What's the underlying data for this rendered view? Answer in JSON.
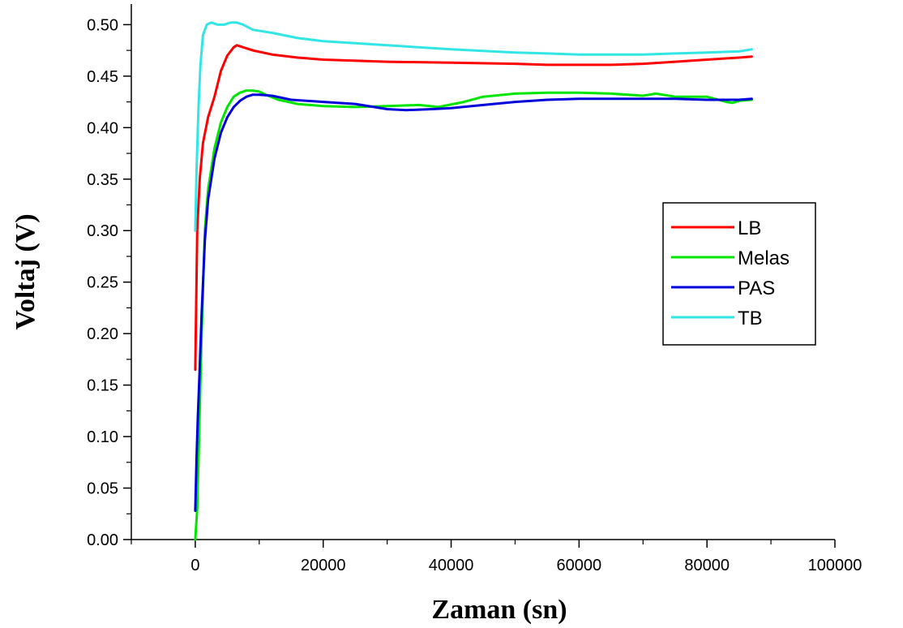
{
  "chart_data": {
    "type": "line",
    "title": "",
    "xlabel": "Zaman (sn)",
    "ylabel": "Voltaj (V)",
    "xlim": [
      -10000,
      100000
    ],
    "ylim": [
      0.0,
      0.52
    ],
    "x_ticks": [
      0,
      20000,
      40000,
      60000,
      80000,
      100000
    ],
    "x_tick_labels": [
      "0",
      "20000",
      "40000",
      "60000",
      "80000",
      "100000"
    ],
    "y_ticks": [
      0.0,
      0.05,
      0.1,
      0.15,
      0.2,
      0.25,
      0.3,
      0.35,
      0.4,
      0.45,
      0.5
    ],
    "y_tick_labels": [
      "0.00",
      "0.05",
      "0.10",
      "0.15",
      "0.20",
      "0.25",
      "0.30",
      "0.35",
      "0.40",
      "0.45",
      "0.50"
    ],
    "grid": false,
    "legend_position": "right",
    "series": [
      {
        "name": "LB",
        "color": "#ff0000",
        "x": [
          0,
          300,
          700,
          1200,
          2000,
          3000,
          4000,
          5000,
          6000,
          6500,
          7500,
          9000,
          12000,
          16000,
          20000,
          30000,
          40000,
          50000,
          55000,
          60000,
          65000,
          70000,
          75000,
          80000,
          85000,
          87000
        ],
        "y": [
          0.165,
          0.3,
          0.35,
          0.385,
          0.41,
          0.43,
          0.455,
          0.47,
          0.478,
          0.48,
          0.478,
          0.475,
          0.471,
          0.468,
          0.466,
          0.464,
          0.463,
          0.462,
          0.461,
          0.461,
          0.461,
          0.462,
          0.464,
          0.466,
          0.468,
          0.469
        ]
      },
      {
        "name": "Melas",
        "color": "#00e600",
        "x": [
          0,
          300,
          600,
          1000,
          1500,
          2000,
          3000,
          4000,
          5000,
          6000,
          7000,
          8000,
          9000,
          10000,
          11000,
          13000,
          16000,
          20000,
          25000,
          30000,
          35000,
          38000,
          42000,
          45000,
          50000,
          55000,
          60000,
          65000,
          70000,
          72000,
          75000,
          80000,
          83000,
          84000,
          85000,
          87000
        ],
        "y": [
          0.0,
          0.03,
          0.1,
          0.2,
          0.3,
          0.34,
          0.38,
          0.405,
          0.42,
          0.43,
          0.434,
          0.436,
          0.436,
          0.435,
          0.432,
          0.427,
          0.423,
          0.421,
          0.42,
          0.421,
          0.422,
          0.42,
          0.425,
          0.43,
          0.433,
          0.434,
          0.434,
          0.433,
          0.431,
          0.433,
          0.43,
          0.43,
          0.425,
          0.424,
          0.426,
          0.427
        ]
      },
      {
        "name": "PAS",
        "color": "#0000dd",
        "x": [
          0,
          200,
          400,
          600,
          1000,
          1500,
          2000,
          3000,
          4000,
          5000,
          6000,
          7000,
          8000,
          9000,
          10000,
          12000,
          15000,
          20000,
          25000,
          30000,
          33000,
          37000,
          40000,
          45000,
          50000,
          55000,
          60000,
          65000,
          70000,
          75000,
          80000,
          85000,
          87000
        ],
        "y": [
          0.028,
          0.08,
          0.12,
          0.15,
          0.22,
          0.29,
          0.33,
          0.37,
          0.395,
          0.41,
          0.42,
          0.426,
          0.43,
          0.432,
          0.432,
          0.431,
          0.427,
          0.425,
          0.423,
          0.418,
          0.417,
          0.418,
          0.419,
          0.422,
          0.425,
          0.427,
          0.428,
          0.428,
          0.428,
          0.428,
          0.427,
          0.427,
          0.428
        ]
      },
      {
        "name": "TB",
        "color": "#33e6e6",
        "x": [
          0,
          200,
          500,
          800,
          1200,
          1800,
          2500,
          3500,
          4500,
          5500,
          6500,
          7500,
          9000,
          12000,
          16000,
          20000,
          30000,
          40000,
          50000,
          55000,
          60000,
          65000,
          70000,
          75000,
          80000,
          85000,
          87000
        ],
        "y": [
          0.3,
          0.36,
          0.42,
          0.46,
          0.49,
          0.5,
          0.502,
          0.5,
          0.5,
          0.502,
          0.502,
          0.5,
          0.495,
          0.492,
          0.487,
          0.484,
          0.48,
          0.476,
          0.473,
          0.472,
          0.471,
          0.471,
          0.471,
          0.472,
          0.473,
          0.474,
          0.476
        ]
      }
    ]
  }
}
